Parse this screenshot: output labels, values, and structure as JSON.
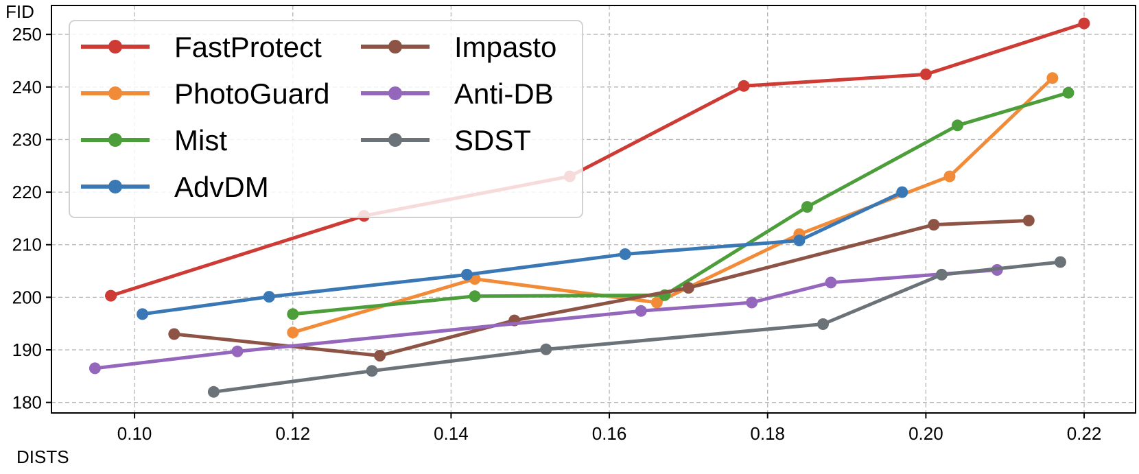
{
  "chart_data": {
    "type": "line",
    "title": "",
    "xlabel": "DISTS",
    "ylabel": "FID",
    "xlim": [
      0.0895,
      0.2265
    ],
    "ylim": [
      178,
      255.5
    ],
    "xticks": [
      "0.10",
      "0.12",
      "0.14",
      "0.16",
      "0.18",
      "0.20",
      "0.22"
    ],
    "yticks": [
      "180",
      "190",
      "200",
      "210",
      "220",
      "230",
      "240",
      "250"
    ],
    "grid": true,
    "legend_position": "top-left",
    "series": [
      {
        "name": "FastProtect",
        "color": "#cd3b34",
        "x": [
          0.097,
          0.129,
          0.155,
          0.177,
          0.2,
          0.22
        ],
        "y": [
          200.3,
          215.5,
          223.0,
          240.2,
          242.4,
          252.1
        ]
      },
      {
        "name": "PhotoGuard",
        "color": "#f28b38",
        "x": [
          0.12,
          0.143,
          0.166,
          0.184,
          0.203,
          0.216
        ],
        "y": [
          193.3,
          203.5,
          199.0,
          212.0,
          223.0,
          241.7
        ]
      },
      {
        "name": "Mist",
        "color": "#4c9e3a",
        "x": [
          0.12,
          0.143,
          0.167,
          0.185,
          0.204,
          0.218
        ],
        "y": [
          196.8,
          200.2,
          200.4,
          217.2,
          232.7,
          238.9
        ]
      },
      {
        "name": "AdvDM",
        "color": "#3a78b5",
        "x": [
          0.101,
          0.117,
          0.142,
          0.162,
          0.184,
          0.197
        ],
        "y": [
          196.8,
          200.1,
          204.3,
          208.2,
          210.8,
          220.0
        ]
      },
      {
        "name": "Impasto",
        "color": "#8d5446",
        "x": [
          0.105,
          0.131,
          0.148,
          0.17,
          0.201,
          0.213
        ],
        "y": [
          193.0,
          188.9,
          195.6,
          201.8,
          213.8,
          214.6
        ]
      },
      {
        "name": "Anti-DB",
        "color": "#9467bd",
        "x": [
          0.095,
          0.113,
          0.164,
          0.178,
          0.188,
          0.209
        ],
        "y": [
          186.5,
          189.7,
          197.4,
          199.0,
          202.8,
          205.2
        ]
      },
      {
        "name": "SDST",
        "color": "#6c7378",
        "x": [
          0.11,
          0.13,
          0.152,
          0.187,
          0.202,
          0.217
        ],
        "y": [
          182.0,
          186.0,
          190.1,
          194.9,
          204.3,
          206.7
        ]
      }
    ]
  }
}
